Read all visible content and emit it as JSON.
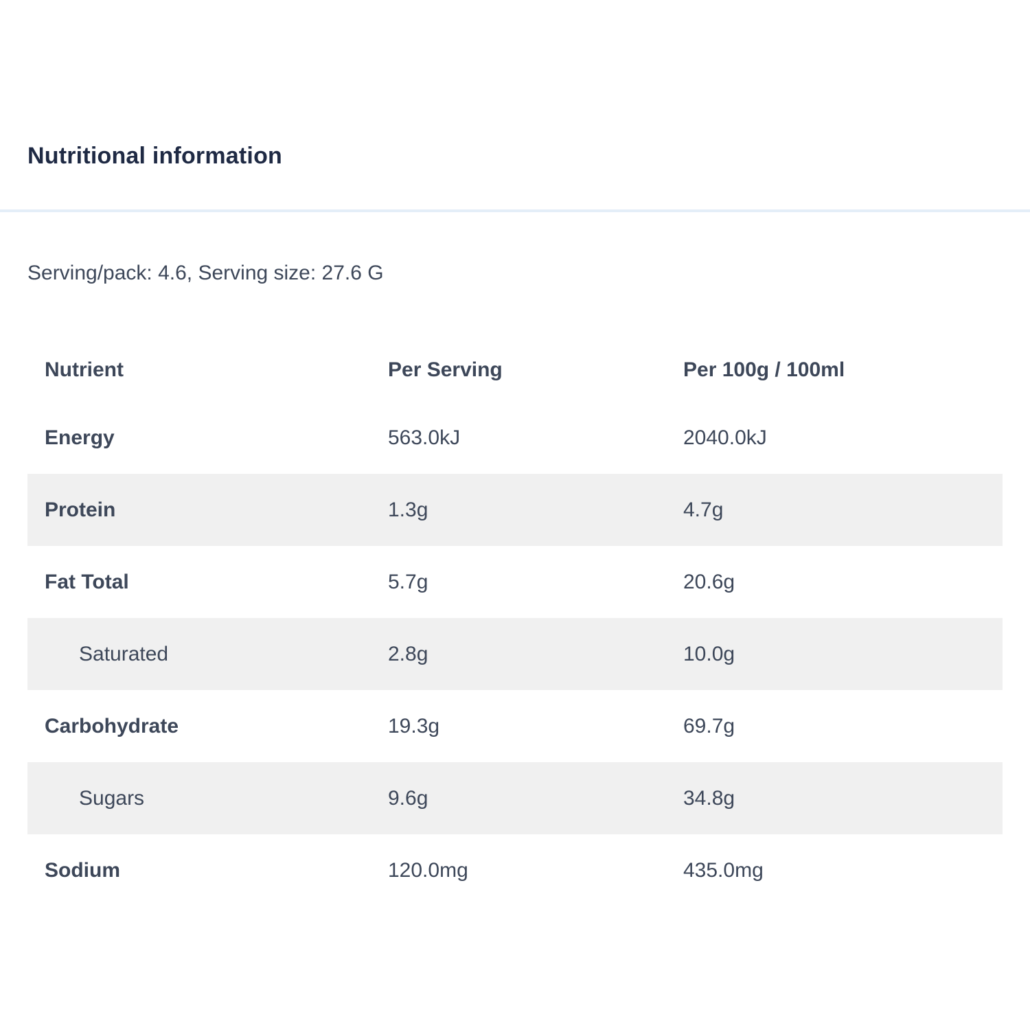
{
  "header": {
    "title": "Nutritional information"
  },
  "serving_info": "Serving/pack: 4.6, Serving size: 27.6 G",
  "table": {
    "columns": {
      "nutrient": "Nutrient",
      "per_serving": "Per Serving",
      "per_100": "Per 100g / 100ml"
    },
    "rows": [
      {
        "nutrient": "Energy",
        "per_serving": "563.0kJ",
        "per_100": "2040.0kJ"
      },
      {
        "nutrient": "Protein",
        "per_serving": "1.3g",
        "per_100": "4.7g"
      },
      {
        "nutrient": "Fat Total",
        "per_serving": "5.7g",
        "per_100": "20.6g"
      },
      {
        "nutrient": "Saturated",
        "per_serving": "2.8g",
        "per_100": "10.0g"
      },
      {
        "nutrient": "Carbohydrate",
        "per_serving": "19.3g",
        "per_100": "69.7g"
      },
      {
        "nutrient": "Sugars",
        "per_serving": "9.6g",
        "per_100": "34.8g"
      },
      {
        "nutrient": "Sodium",
        "per_serving": "120.0mg",
        "per_100": "435.0mg"
      }
    ]
  },
  "colors": {
    "title_color": "#1f2a44",
    "text_color": "#3d4759",
    "stripe_bg": "#f0f0f0",
    "divider_color": "#e4eef8",
    "page_bg": "#ffffff"
  }
}
